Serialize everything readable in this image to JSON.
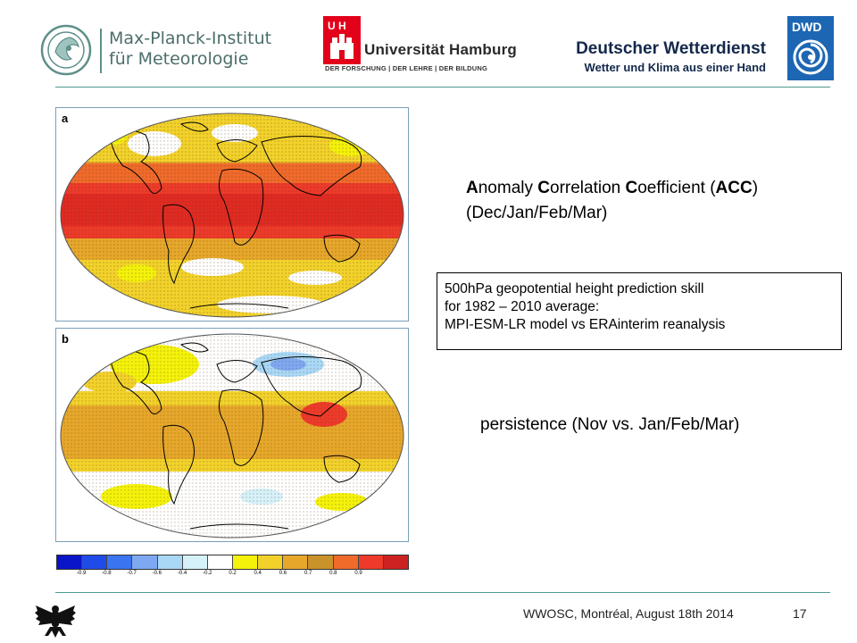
{
  "header": {
    "mpi": {
      "line1": "Max-Planck-Institut",
      "line2": "für Meteorologie"
    },
    "uhh": {
      "badge": "U H",
      "name": "Universität Hamburg",
      "motto": "DER FORSCHUNG | DER LEHRE | DER BILDUNG"
    },
    "dwd": {
      "name": "Deutscher Wetterdienst",
      "subtitle": "Wetter und Klima aus einer Hand",
      "badge": "DWD"
    }
  },
  "panels": [
    {
      "letter": "a"
    },
    {
      "letter": "b"
    }
  ],
  "colorbar": {
    "swatches": [
      "#0a14c8",
      "#1f4ce8",
      "#3a74f0",
      "#7fa8f2",
      "#a9d8f6",
      "#d6f1fa",
      "#ffffff",
      "#f4f20a",
      "#f2d22a",
      "#e6a72a",
      "#c9922a",
      "#f06a2a",
      "#ee3a2a",
      "#cc2222"
    ],
    "ticks": [
      "-0.9",
      "-0.8",
      "-0.7",
      "-0.6",
      "-0.4",
      "-0.2",
      "0.2",
      "0.4",
      "0.6",
      "0.7",
      "0.8",
      "0.9"
    ]
  },
  "acc": {
    "letter1": "A",
    "rest1": "nomaly ",
    "letter2": "C",
    "rest2": "orrelation ",
    "letter3": "C",
    "rest3": "oefficient (",
    "abbr": "ACC",
    "close": ")",
    "line2": "(Dec/Jan/Feb/Mar)"
  },
  "info_box": {
    "line1": "500hPa geopotential height prediction skill",
    "line2": "for 1982 – 2010 average:",
    "line3": "MPI-ESM-LR model vs ERAinterim reanalysis"
  },
  "persistence": "persistence (Nov vs. Jan/Feb/Mar)",
  "footer": {
    "text": "WWOSC, Montréal, August 18th  2014",
    "page": "17"
  }
}
